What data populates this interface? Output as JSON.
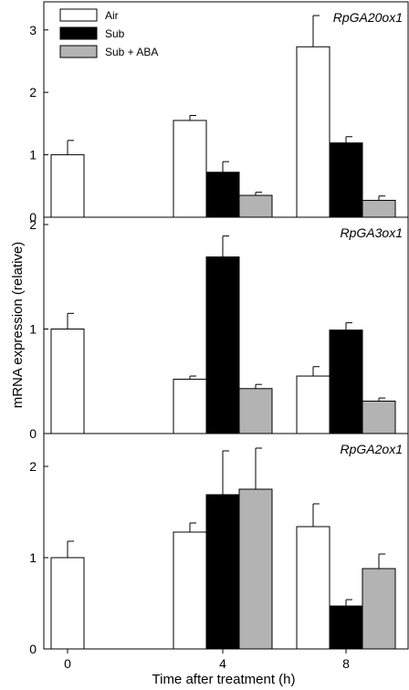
{
  "figure": {
    "ylabel": "mRNA expression (relative)",
    "xlabel": "Time after treatment (h)",
    "legend": [
      {
        "name": "Air",
        "color": "#ffffff"
      },
      {
        "name": "Sub",
        "color": "#000000"
      },
      {
        "name": "Sub + ABA",
        "color": "#b3b3b3"
      }
    ]
  },
  "chart_data": [
    {
      "type": "bar",
      "title": "RpGA20ox1",
      "categories": [
        "0",
        "4",
        "8"
      ],
      "ylim": [
        0,
        3.45
      ],
      "yticks": [
        "0",
        "1",
        "2",
        "3"
      ],
      "series": [
        {
          "name": "Air",
          "values": [
            1.0,
            1.55,
            2.73
          ],
          "errors": [
            0.23,
            0.08,
            0.5
          ]
        },
        {
          "name": "Sub",
          "values": [
            null,
            0.72,
            1.19
          ],
          "errors": [
            null,
            0.17,
            0.1
          ]
        },
        {
          "name": "Sub + ABA",
          "values": [
            null,
            0.35,
            0.27
          ],
          "errors": [
            null,
            0.05,
            0.07
          ]
        }
      ]
    },
    {
      "type": "bar",
      "title": "RpGA3ox1",
      "categories": [
        "0",
        "4",
        "8"
      ],
      "ylim": [
        0,
        2.07
      ],
      "yticks": [
        "0",
        "1",
        "2"
      ],
      "series": [
        {
          "name": "Air",
          "values": [
            1.0,
            0.52,
            0.55
          ],
          "errors": [
            0.15,
            0.03,
            0.09
          ]
        },
        {
          "name": "Sub",
          "values": [
            null,
            1.69,
            0.99
          ],
          "errors": [
            null,
            0.2,
            0.07
          ]
        },
        {
          "name": "Sub + ABA",
          "values": [
            null,
            0.43,
            0.31
          ],
          "errors": [
            null,
            0.04,
            0.03
          ]
        }
      ]
    },
    {
      "type": "bar",
      "title": "RpGA2ox1",
      "categories": [
        "0",
        "4",
        "8"
      ],
      "ylim": [
        0,
        2.36
      ],
      "yticks": [
        "0",
        "1",
        "2"
      ],
      "series": [
        {
          "name": "Air",
          "values": [
            1.0,
            1.28,
            1.34
          ],
          "errors": [
            0.18,
            0.1,
            0.25
          ]
        },
        {
          "name": "Sub",
          "values": [
            null,
            1.69,
            0.47
          ],
          "errors": [
            null,
            0.48,
            0.07
          ]
        },
        {
          "name": "Sub + ABA",
          "values": [
            null,
            1.75,
            0.88
          ],
          "errors": [
            null,
            0.45,
            0.16
          ]
        }
      ]
    }
  ]
}
